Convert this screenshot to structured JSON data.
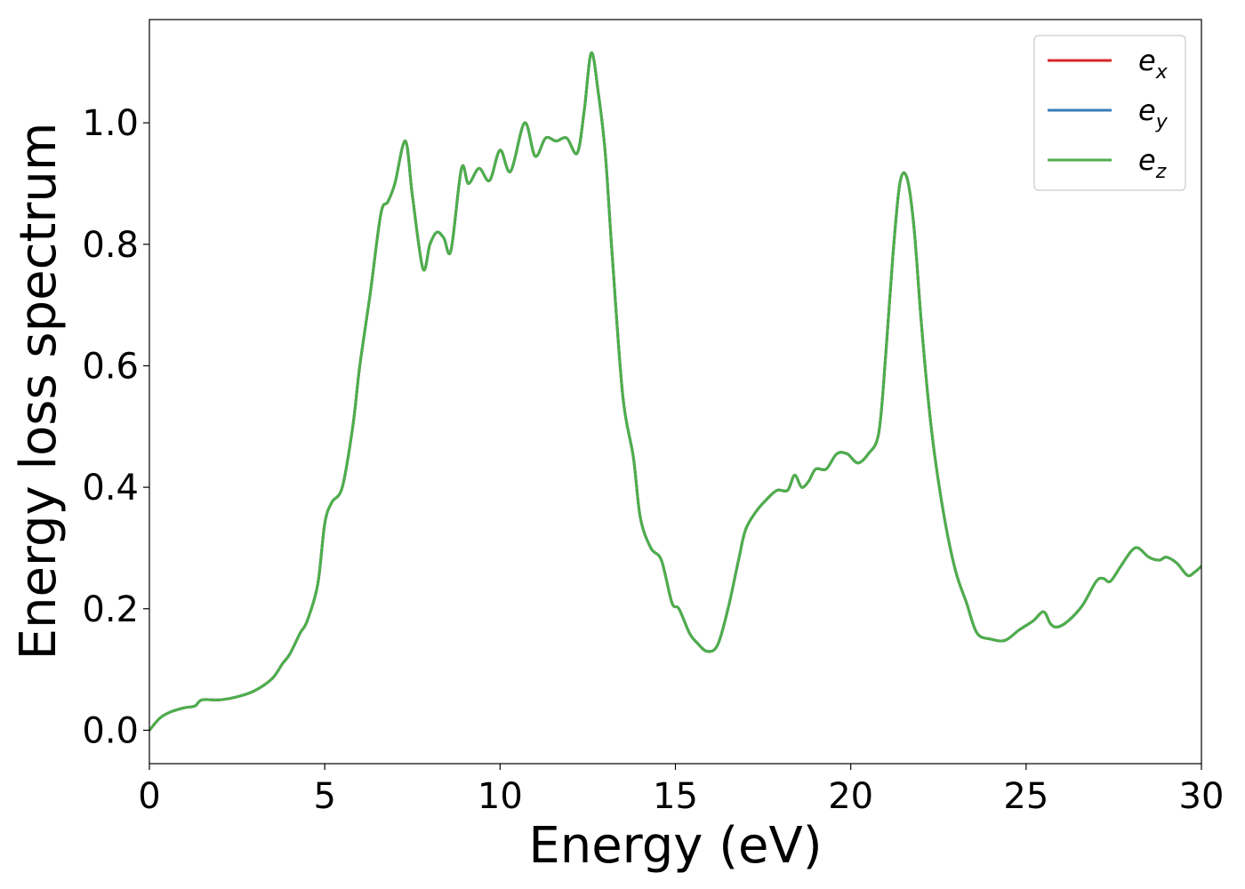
{
  "chart_data": {
    "type": "line",
    "title": "",
    "xlabel": "Energy (eV)",
    "ylabel": "Energy loss spectrum",
    "xlim": [
      0,
      30
    ],
    "ylim": [
      -0.055,
      1.17
    ],
    "xticks": [
      0,
      5,
      10,
      15,
      20,
      25,
      30
    ],
    "xtick_labels": [
      "0",
      "5",
      "10",
      "15",
      "20",
      "25",
      "30"
    ],
    "yticks": [
      0.0,
      0.2,
      0.4,
      0.6,
      0.8,
      1.0
    ],
    "ytick_labels": [
      "0.0",
      "0.2",
      "0.4",
      "0.6",
      "0.8",
      "1.0"
    ],
    "grid": false,
    "legend_position": "top-right",
    "x": [
      0,
      0.3,
      0.6,
      1.0,
      1.3,
      1.5,
      2.0,
      2.5,
      3.0,
      3.5,
      3.8,
      4.0,
      4.3,
      4.5,
      4.8,
      5.0,
      5.2,
      5.5,
      5.8,
      6.0,
      6.3,
      6.6,
      6.8,
      7.0,
      7.3,
      7.5,
      7.8,
      8.0,
      8.2,
      8.4,
      8.6,
      8.9,
      9.1,
      9.4,
      9.7,
      10.0,
      10.3,
      10.7,
      11.0,
      11.3,
      11.6,
      11.9,
      12.2,
      12.4,
      12.6,
      12.8,
      13.0,
      13.2,
      13.5,
      13.8,
      14.0,
      14.3,
      14.6,
      14.9,
      15.1,
      15.4,
      15.6,
      15.9,
      16.2,
      16.5,
      16.8,
      17.0,
      17.3,
      17.6,
      17.9,
      18.2,
      18.4,
      18.6,
      18.8,
      19.0,
      19.3,
      19.6,
      19.9,
      20.2,
      20.5,
      20.8,
      21.0,
      21.2,
      21.4,
      21.6,
      21.8,
      22.0,
      22.2,
      22.4,
      22.7,
      23.0,
      23.3,
      23.6,
      24.0,
      24.4,
      24.8,
      25.2,
      25.5,
      25.7,
      25.9,
      26.2,
      26.6,
      27.0,
      27.2,
      27.4,
      27.7,
      28.0,
      28.2,
      28.5,
      28.8,
      29.0,
      29.3,
      29.6,
      29.8,
      30.0
    ],
    "series": [
      {
        "name": "e_x",
        "label_base": "e",
        "label_sub": "x",
        "color": "#d62728",
        "values": [
          0.0,
          0.02,
          0.03,
          0.037,
          0.04,
          0.05,
          0.05,
          0.055,
          0.065,
          0.085,
          0.11,
          0.125,
          0.16,
          0.18,
          0.24,
          0.34,
          0.375,
          0.4,
          0.5,
          0.6,
          0.72,
          0.85,
          0.87,
          0.9,
          0.97,
          0.88,
          0.76,
          0.8,
          0.82,
          0.81,
          0.79,
          0.925,
          0.9,
          0.925,
          0.905,
          0.955,
          0.92,
          1.0,
          0.945,
          0.975,
          0.97,
          0.975,
          0.95,
          1.02,
          1.115,
          1.05,
          0.95,
          0.78,
          0.55,
          0.45,
          0.35,
          0.3,
          0.28,
          0.21,
          0.2,
          0.16,
          0.145,
          0.13,
          0.14,
          0.2,
          0.28,
          0.33,
          0.36,
          0.38,
          0.395,
          0.395,
          0.42,
          0.4,
          0.41,
          0.43,
          0.43,
          0.455,
          0.455,
          0.44,
          0.455,
          0.49,
          0.62,
          0.78,
          0.9,
          0.91,
          0.83,
          0.68,
          0.55,
          0.45,
          0.34,
          0.26,
          0.21,
          0.16,
          0.15,
          0.148,
          0.165,
          0.18,
          0.195,
          0.175,
          0.17,
          0.18,
          0.205,
          0.245,
          0.25,
          0.245,
          0.27,
          0.295,
          0.3,
          0.285,
          0.28,
          0.285,
          0.275,
          0.255,
          0.26,
          0.27
        ]
      },
      {
        "name": "e_y",
        "label_base": "e",
        "label_sub": "y",
        "color": "#377eb8",
        "values": [
          0.0,
          0.02,
          0.03,
          0.037,
          0.04,
          0.05,
          0.05,
          0.055,
          0.065,
          0.085,
          0.11,
          0.125,
          0.16,
          0.18,
          0.24,
          0.34,
          0.375,
          0.4,
          0.5,
          0.6,
          0.72,
          0.85,
          0.87,
          0.9,
          0.97,
          0.88,
          0.76,
          0.8,
          0.82,
          0.81,
          0.79,
          0.925,
          0.9,
          0.925,
          0.905,
          0.955,
          0.92,
          1.0,
          0.945,
          0.975,
          0.97,
          0.975,
          0.95,
          1.02,
          1.115,
          1.05,
          0.95,
          0.78,
          0.55,
          0.45,
          0.35,
          0.3,
          0.28,
          0.21,
          0.2,
          0.16,
          0.145,
          0.13,
          0.14,
          0.2,
          0.28,
          0.33,
          0.36,
          0.38,
          0.395,
          0.395,
          0.42,
          0.4,
          0.41,
          0.43,
          0.43,
          0.455,
          0.455,
          0.44,
          0.455,
          0.49,
          0.62,
          0.78,
          0.9,
          0.91,
          0.83,
          0.68,
          0.55,
          0.45,
          0.34,
          0.26,
          0.21,
          0.16,
          0.15,
          0.148,
          0.165,
          0.18,
          0.195,
          0.175,
          0.17,
          0.18,
          0.205,
          0.245,
          0.25,
          0.245,
          0.27,
          0.295,
          0.3,
          0.285,
          0.28,
          0.285,
          0.275,
          0.255,
          0.26,
          0.27
        ]
      },
      {
        "name": "e_z",
        "label_base": "e",
        "label_sub": "z",
        "color": "#4daf4a",
        "values": [
          0.0,
          0.02,
          0.03,
          0.037,
          0.04,
          0.05,
          0.05,
          0.055,
          0.065,
          0.085,
          0.11,
          0.125,
          0.16,
          0.18,
          0.24,
          0.34,
          0.375,
          0.4,
          0.5,
          0.6,
          0.72,
          0.85,
          0.87,
          0.9,
          0.97,
          0.88,
          0.76,
          0.8,
          0.82,
          0.81,
          0.79,
          0.925,
          0.9,
          0.925,
          0.905,
          0.955,
          0.92,
          1.0,
          0.945,
          0.975,
          0.97,
          0.975,
          0.95,
          1.02,
          1.115,
          1.05,
          0.95,
          0.78,
          0.55,
          0.45,
          0.35,
          0.3,
          0.28,
          0.21,
          0.2,
          0.16,
          0.145,
          0.13,
          0.14,
          0.2,
          0.28,
          0.33,
          0.36,
          0.38,
          0.395,
          0.395,
          0.42,
          0.4,
          0.41,
          0.43,
          0.43,
          0.455,
          0.455,
          0.44,
          0.455,
          0.49,
          0.62,
          0.78,
          0.9,
          0.91,
          0.83,
          0.68,
          0.55,
          0.45,
          0.34,
          0.26,
          0.21,
          0.16,
          0.15,
          0.148,
          0.165,
          0.18,
          0.195,
          0.175,
          0.17,
          0.18,
          0.205,
          0.245,
          0.25,
          0.245,
          0.27,
          0.295,
          0.3,
          0.285,
          0.28,
          0.285,
          0.275,
          0.255,
          0.26,
          0.27
        ]
      }
    ]
  }
}
